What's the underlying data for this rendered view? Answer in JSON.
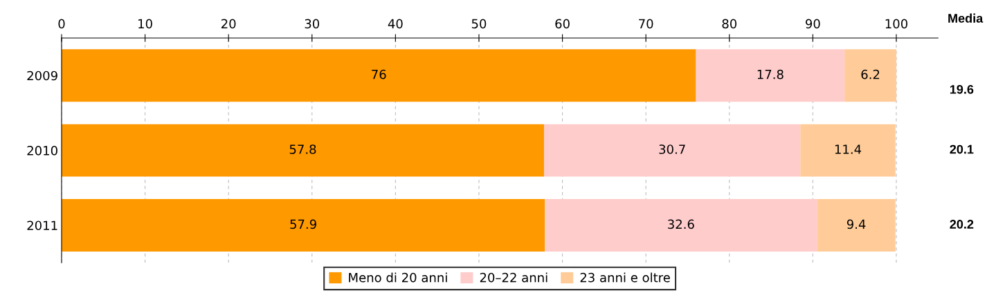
{
  "chart_data": {
    "type": "bar",
    "orientation": "horizontal",
    "stacked": true,
    "categories": [
      "2009",
      "2010",
      "2011"
    ],
    "series": [
      {
        "name": "Meno di 20 anni",
        "color": "#ff9900",
        "values": [
          76,
          57.8,
          57.9
        ]
      },
      {
        "name": "20–22 anni",
        "color": "#ffcccc",
        "values": [
          17.8,
          30.7,
          32.6
        ]
      },
      {
        "name": "23 anni e oltre",
        "color": "#ffcc99",
        "values": [
          6.2,
          11.4,
          9.4
        ]
      }
    ],
    "xlim": [
      0,
      105
    ],
    "xticks": [
      0,
      10,
      20,
      30,
      40,
      50,
      60,
      70,
      80,
      90,
      100
    ],
    "grid": "x",
    "legend": "bottom",
    "data_labels": true,
    "annotations": [
      "Media",
      "19.6",
      "20.1",
      "20.2"
    ]
  }
}
